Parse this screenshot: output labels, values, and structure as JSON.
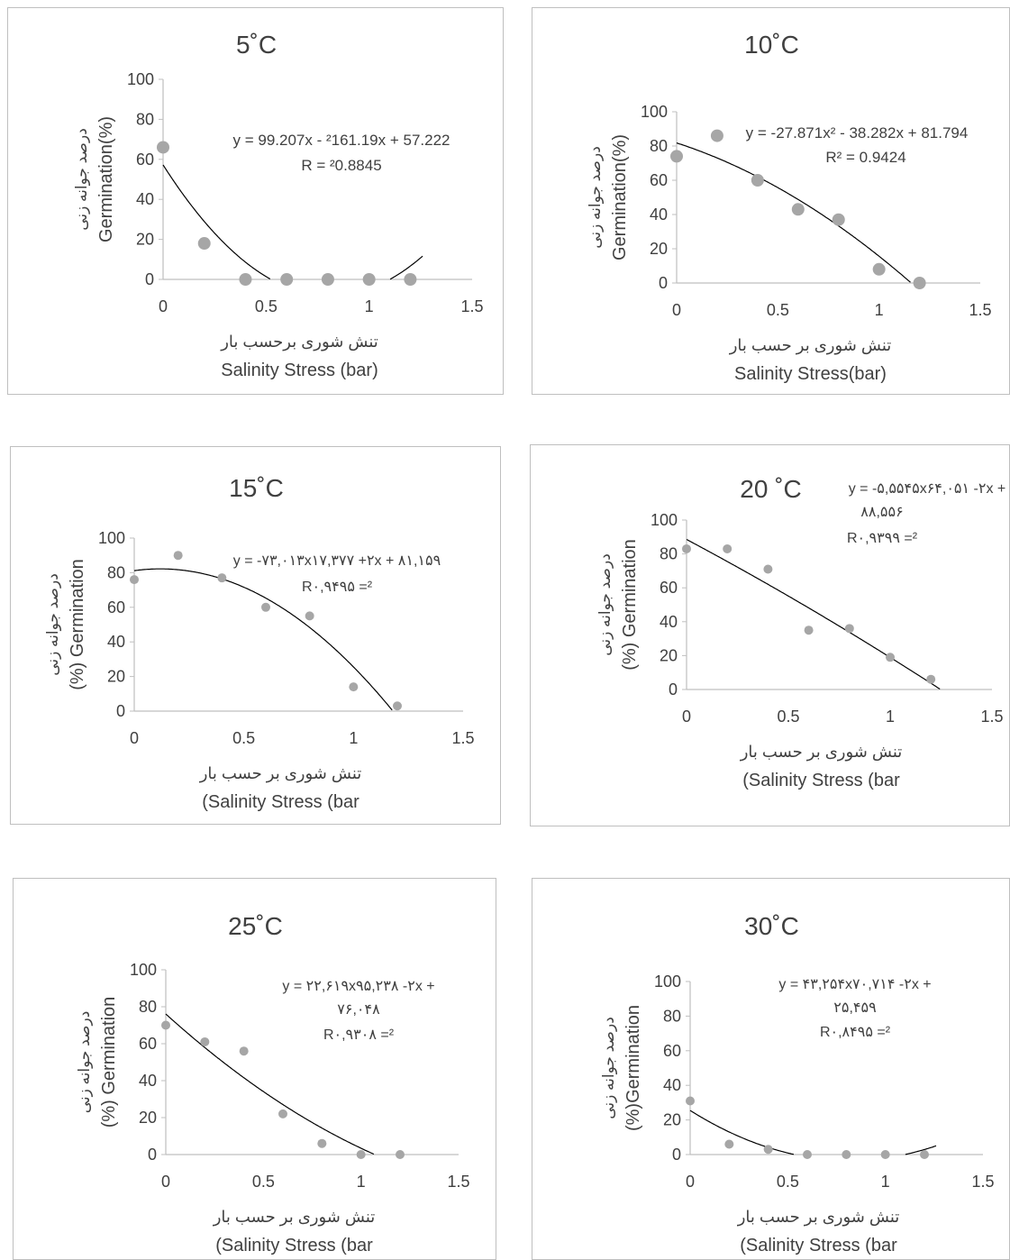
{
  "chart_data": [
    {
      "type": "scatter",
      "title": "5˚C",
      "ylabel_line1": "درصد جوانه زنی",
      "ylabel_line2": "Germination(%)",
      "xlabel_line1": "تنش شوری برحسب بار",
      "xlabel_line2": "Salinity Stress (bar)",
      "equation": "y = 99.207x - ²161.19x + 57.222",
      "r2": "R = ²0.8845",
      "xlim": [
        0,
        1.5
      ],
      "ylim": [
        0,
        100
      ],
      "x_ticks": [
        "0",
        "0.5",
        "1",
        "1.5"
      ],
      "y_ticks": [
        "0",
        "20",
        "40",
        "60",
        "80",
        "100"
      ],
      "series": [
        {
          "x": [
            0,
            0.2,
            0.4,
            0.6,
            0.8,
            1.0,
            1.2
          ],
          "values": [
            66,
            18,
            0,
            0,
            0,
            0,
            0
          ]
        }
      ],
      "trendline": {
        "coef": [
          57.222,
          -161.19,
          99.207
        ]
      }
    },
    {
      "type": "scatter",
      "title": "10˚C",
      "ylabel_line1": "درصد جوانه زنی",
      "ylabel_line2": "Germination(%)",
      "xlabel_line1": "تنش شوری بر حسب بار",
      "xlabel_line2": "Salinity Stress(bar)",
      "equation": "y = -27.871x² - 38.282x + 81.794",
      "r2": "R² = 0.9424",
      "xlim": [
        0,
        1.5
      ],
      "ylim": [
        0,
        100
      ],
      "x_ticks": [
        "0",
        "0.5",
        "1",
        "1.5"
      ],
      "y_ticks": [
        "0",
        "20",
        "40",
        "60",
        "80",
        "100"
      ],
      "series": [
        {
          "x": [
            0,
            0.2,
            0.4,
            0.6,
            0.8,
            1.0,
            1.2
          ],
          "values": [
            74,
            86,
            60,
            43,
            37,
            8,
            0
          ]
        }
      ],
      "trendline": {
        "coef": [
          81.794,
          -38.282,
          -27.871
        ]
      }
    },
    {
      "type": "scatter",
      "title": "15˚C",
      "ylabel_line1": "درصد جوانه زنی",
      "ylabel_line2": "(%) Germination",
      "xlabel_line1": "تنش شوری بر حسب بار",
      "xlabel_line2": "(Salinity Stress (bar",
      "equation": "y = -۷۳,۰۱۳x۱۷,۳۷۷ +۲x + ۸۱,۱۵۹",
      "r2": "R۰,۹۴۹۵ =²",
      "xlim": [
        0,
        1.5
      ],
      "ylim": [
        0,
        100
      ],
      "x_ticks": [
        "0",
        "0.5",
        "1",
        "1.5"
      ],
      "y_ticks": [
        "0",
        "20",
        "40",
        "60",
        "80",
        "100"
      ],
      "series": [
        {
          "x": [
            0,
            0.2,
            0.4,
            0.6,
            0.8,
            1.0,
            1.2
          ],
          "values": [
            76,
            90,
            77,
            60,
            55,
            14,
            3
          ]
        }
      ],
      "trendline": {
        "coef": [
          81.159,
          17.377,
          -73.013
        ]
      }
    },
    {
      "type": "scatter",
      "title": "20 ˚C",
      "ylabel_line1": "درصد جوانه زنی",
      "ylabel_line2": "(%) Germination",
      "xlabel_line1": "تنش شوری بر حسب بار",
      "xlabel_line2": "(Salinity Stress (bar",
      "equation_line1": "y = -۵,۵۵۴۵x۶۴,۰۵۱ -۲x +",
      "equation_line2": "۸۸,۵۵۶",
      "r2": "R۰,۹۳۹۹ =²",
      "xlim": [
        0,
        1.5
      ],
      "ylim": [
        0,
        100
      ],
      "x_ticks": [
        "0",
        "0.5",
        "1",
        "1.5"
      ],
      "y_ticks": [
        "0",
        "20",
        "40",
        "60",
        "80",
        "100"
      ],
      "series": [
        {
          "x": [
            0,
            0.2,
            0.4,
            0.6,
            0.8,
            1.0,
            1.2
          ],
          "values": [
            83,
            83,
            71,
            35,
            36,
            19,
            6
          ]
        }
      ],
      "trendline": {
        "coef": [
          88.556,
          -64.051,
          -5.5545
        ]
      }
    },
    {
      "type": "scatter",
      "title": "25˚C",
      "ylabel_line1": "درصد جوانه زنی",
      "ylabel_line2": "(%) Germination",
      "xlabel_line1": "تنش شوری بر حسب بار",
      "xlabel_line2": "(Salinity Stress (bar",
      "equation_line1": "y = ۲۲,۶۱۹x۹۵,۲۳۸ -۲x +",
      "equation_line2": "۷۶,۰۴۸",
      "r2": "R۰,۹۳۰۸ =²",
      "xlim": [
        0,
        1.5
      ],
      "ylim": [
        0,
        100
      ],
      "x_ticks": [
        "0",
        "0.5",
        "1",
        "1.5"
      ],
      "y_ticks": [
        "0",
        "20",
        "40",
        "60",
        "80",
        "100"
      ],
      "series": [
        {
          "x": [
            0,
            0.2,
            0.4,
            0.6,
            0.8,
            1.0,
            1.2
          ],
          "values": [
            70,
            61,
            56,
            22,
            6,
            0,
            0
          ]
        }
      ],
      "trendline": {
        "coef": [
          76.048,
          -95.238,
          22.619
        ]
      }
    },
    {
      "type": "scatter",
      "title": "30˚C",
      "ylabel_line1": "درصد جوانه زنی",
      "ylabel_line2": "(%)Germination",
      "xlabel_line1": "تنش شوری بر حسب بار",
      "xlabel_line2": "(Salinity Stress (bar",
      "equation_line1": "y = ۴۳,۲۵۴x۷۰,۷۱۴ -۲x +",
      "equation_line2": "۲۵,۴۵۹",
      "r2": "R۰,۸۴۹۵ =²",
      "xlim": [
        0,
        1.5
      ],
      "ylim": [
        0,
        100
      ],
      "x_ticks": [
        "0",
        "0.5",
        "1",
        "1.5"
      ],
      "y_ticks": [
        "0",
        "20",
        "40",
        "60",
        "80",
        "100"
      ],
      "series": [
        {
          "x": [
            0,
            0.2,
            0.4,
            0.6,
            0.8,
            1.0,
            1.2
          ],
          "values": [
            31,
            6,
            3,
            0,
            0,
            0,
            0
          ]
        }
      ],
      "trendline": {
        "coef": [
          25.459,
          -70.714,
          43.254
        ]
      }
    }
  ],
  "colors": {
    "marker": "#a6a6a6",
    "trend": "#000000",
    "axis": "#bfbfbf",
    "text": "#404040",
    "title": "#404040"
  }
}
